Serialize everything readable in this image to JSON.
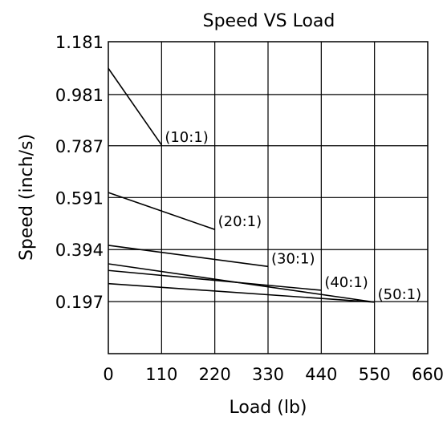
{
  "chart_data": {
    "type": "line",
    "title": "Speed VS Load",
    "xlabel": "Load (lb)",
    "ylabel": "Speed (inch/s)",
    "xlim": [
      0,
      660
    ],
    "ylim": [
      0,
      1.181
    ],
    "grid": true,
    "x_ticks": [
      0,
      110,
      220,
      330,
      440,
      550,
      660
    ],
    "y_ticks": [
      0.197,
      0.394,
      0.591,
      0.787,
      0.981,
      1.181
    ],
    "x_tick_labels": [
      "0",
      "110",
      "220",
      "330",
      "440",
      "550",
      "660"
    ],
    "y_tick_labels": [
      "0.197",
      "0.394",
      "0.591",
      "0.787",
      "0.981",
      "1.181"
    ],
    "series": [
      {
        "name": "(10:1)",
        "x": [
          0,
          110
        ],
        "y": [
          1.08,
          0.79
        ]
      },
      {
        "name": "(20:1)",
        "x": [
          0,
          220
        ],
        "y": [
          0.61,
          0.47
        ]
      },
      {
        "name": "(30:1)",
        "x": [
          0,
          330
        ],
        "y": [
          0.41,
          0.33
        ]
      },
      {
        "name": "(40:1)",
        "x": [
          0,
          440
        ],
        "y": [
          0.315,
          0.24
        ]
      },
      {
        "name": "(50:1)",
        "x": [
          0,
          550
        ],
        "y": [
          0.265,
          0.195
        ]
      },
      {
        "name": "",
        "x": [
          0,
          550
        ],
        "y": [
          0.34,
          0.195
        ]
      }
    ]
  }
}
